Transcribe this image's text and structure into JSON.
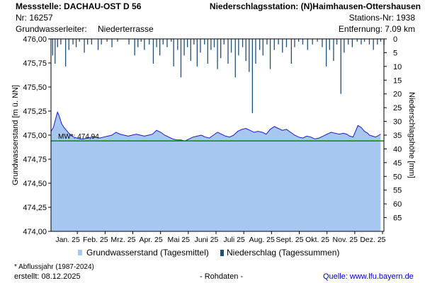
{
  "header": {
    "station_left": "Messstelle: DACHAU-OST D 56",
    "nr_left": "Nr: 16257",
    "aquifer_label": "Grundwasserleiter:",
    "aquifer_value": "Niederterrasse",
    "station_right": "Niederschlagsstation: (N)Haimhausen-Ottershausen",
    "nr_right": "Stations-Nr: 1938",
    "distance": "Entfernung: 7.09 km"
  },
  "chart_data": {
    "type": "area",
    "y_left": {
      "label": "Grundwasserstand [m ü. NN]",
      "range": [
        474.0,
        476.0
      ],
      "ticks": [
        "474,00",
        "474,25",
        "474,50",
        "474,75",
        "475,00",
        "475,25",
        "475,50",
        "475,75",
        "476,00"
      ]
    },
    "y_right": {
      "label": "Niederschlagshöhe [mm]",
      "range": [
        0,
        70
      ],
      "ticks": [
        "0",
        "5",
        "10",
        "15",
        "20",
        "25",
        "30",
        "35",
        "40",
        "45",
        "50",
        "55",
        "60",
        "65"
      ]
    },
    "x_months": [
      "Jan. 25",
      "Feb. 25",
      "Mrz. 25",
      "Apr. 25",
      "Mai 25",
      "Juni 25",
      "Juli 25",
      "Aug. 25",
      "Sept. 25",
      "Okt. 25",
      "Nov. 25",
      "Dez. 25"
    ],
    "mean_water_level": {
      "label": "MW*: 474,94",
      "value": 474.94,
      "color": "#009900"
    },
    "series": [
      {
        "name": "Grundwasserstand (Tagesmittel)",
        "color_fill": "#a6c8f0",
        "color_line": "#1a1acc",
        "points": [
          [
            0,
            475.04
          ],
          [
            3,
            475.08
          ],
          [
            6,
            475.18
          ],
          [
            8,
            475.24
          ],
          [
            10,
            475.2
          ],
          [
            13,
            475.12
          ],
          [
            16,
            475.08
          ],
          [
            20,
            475.04
          ],
          [
            24,
            475.0
          ],
          [
            28,
            474.98
          ],
          [
            32,
            474.97
          ],
          [
            36,
            474.96
          ],
          [
            40,
            474.96
          ],
          [
            45,
            474.97
          ],
          [
            50,
            474.98
          ],
          [
            55,
            474.98
          ],
          [
            60,
            474.97
          ],
          [
            65,
            474.98
          ],
          [
            70,
            474.99
          ],
          [
            75,
            475.0
          ],
          [
            80,
            475.03
          ],
          [
            85,
            475.01
          ],
          [
            90,
            475.0
          ],
          [
            95,
            474.99
          ],
          [
            100,
            475.0
          ],
          [
            105,
            475.01
          ],
          [
            110,
            475.0
          ],
          [
            115,
            474.99
          ],
          [
            120,
            475.0
          ],
          [
            125,
            475.01
          ],
          [
            130,
            475.05
          ],
          [
            135,
            475.03
          ],
          [
            140,
            475.0
          ],
          [
            145,
            474.98
          ],
          [
            150,
            474.96
          ],
          [
            155,
            474.95
          ],
          [
            160,
            474.95
          ],
          [
            165,
            474.94
          ],
          [
            170,
            474.96
          ],
          [
            175,
            474.98
          ],
          [
            180,
            474.99
          ],
          [
            185,
            475.0
          ],
          [
            190,
            474.98
          ],
          [
            195,
            474.97
          ],
          [
            200,
            475.0
          ],
          [
            205,
            475.03
          ],
          [
            210,
            475.01
          ],
          [
            215,
            474.99
          ],
          [
            220,
            474.98
          ],
          [
            225,
            475.0
          ],
          [
            230,
            475.04
          ],
          [
            235,
            475.06
          ],
          [
            240,
            475.07
          ],
          [
            245,
            475.05
          ],
          [
            250,
            475.03
          ],
          [
            255,
            475.04
          ],
          [
            260,
            475.03
          ],
          [
            265,
            475.01
          ],
          [
            270,
            475.06
          ],
          [
            275,
            475.09
          ],
          [
            280,
            475.07
          ],
          [
            285,
            475.05
          ],
          [
            290,
            475.06
          ],
          [
            295,
            475.03
          ],
          [
            300,
            475.0
          ],
          [
            305,
            474.98
          ],
          [
            310,
            474.97
          ],
          [
            315,
            474.99
          ],
          [
            320,
            474.98
          ],
          [
            325,
            474.96
          ],
          [
            330,
            474.97
          ],
          [
            335,
            474.99
          ],
          [
            340,
            475.01
          ],
          [
            345,
            475.03
          ],
          [
            350,
            475.02
          ],
          [
            355,
            475.01
          ],
          [
            360,
            475.02
          ],
          [
            364,
            475.01
          ],
          [
            368,
            474.99
          ],
          [
            372,
            474.98
          ],
          [
            375,
            475.04
          ],
          [
            378,
            475.1
          ],
          [
            382,
            475.08
          ],
          [
            386,
            475.04
          ],
          [
            390,
            475.02
          ],
          [
            392,
            475.0
          ],
          [
            396,
            474.99
          ],
          [
            400,
            474.98
          ],
          [
            404,
            475.0
          ],
          [
            406,
            475.01
          ]
        ]
      },
      {
        "name": "Niederschlag (Tagessummen)",
        "color": "#1f4e79",
        "bars": [
          [
            2,
            6
          ],
          [
            5,
            9
          ],
          [
            8,
            3
          ],
          [
            12,
            2
          ],
          [
            18,
            10
          ],
          [
            22,
            4
          ],
          [
            27,
            2
          ],
          [
            31,
            3
          ],
          [
            35,
            1
          ],
          [
            41,
            5
          ],
          [
            45,
            2
          ],
          [
            50,
            2
          ],
          [
            58,
            4
          ],
          [
            62,
            2
          ],
          [
            69,
            1
          ],
          [
            75,
            3
          ],
          [
            82,
            1
          ],
          [
            96,
            2
          ],
          [
            103,
            6
          ],
          [
            107,
            3
          ],
          [
            111,
            1
          ],
          [
            115,
            4
          ],
          [
            121,
            2
          ],
          [
            126,
            9
          ],
          [
            130,
            3
          ],
          [
            134,
            6
          ],
          [
            138,
            2
          ],
          [
            143,
            3
          ],
          [
            148,
            1
          ],
          [
            151,
            10
          ],
          [
            156,
            4
          ],
          [
            160,
            14
          ],
          [
            164,
            6
          ],
          [
            168,
            3
          ],
          [
            172,
            8
          ],
          [
            176,
            2
          ],
          [
            180,
            10
          ],
          [
            184,
            5
          ],
          [
            189,
            2
          ],
          [
            193,
            9
          ],
          [
            197,
            4
          ],
          [
            201,
            3
          ],
          [
            205,
            11
          ],
          [
            209,
            7
          ],
          [
            213,
            2
          ],
          [
            218,
            9
          ],
          [
            222,
            5
          ],
          [
            227,
            14
          ],
          [
            231,
            6
          ],
          [
            236,
            3
          ],
          [
            240,
            8
          ],
          [
            244,
            12
          ],
          [
            248,
            27
          ],
          [
            252,
            9
          ],
          [
            257,
            4
          ],
          [
            261,
            6
          ],
          [
            266,
            2
          ],
          [
            270,
            11
          ],
          [
            275,
            4
          ],
          [
            280,
            2
          ],
          [
            285,
            5
          ],
          [
            290,
            3
          ],
          [
            296,
            9
          ],
          [
            300,
            3
          ],
          [
            305,
            1
          ],
          [
            310,
            2
          ],
          [
            316,
            4
          ],
          [
            322,
            2
          ],
          [
            328,
            1
          ],
          [
            334,
            3
          ],
          [
            339,
            10
          ],
          [
            343,
            4
          ],
          [
            348,
            8
          ],
          [
            352,
            2
          ],
          [
            357,
            20
          ],
          [
            361,
            5
          ],
          [
            366,
            2
          ],
          [
            371,
            3
          ],
          [
            377,
            1
          ],
          [
            382,
            2
          ],
          [
            386,
            1
          ],
          [
            392,
            2
          ],
          [
            397,
            4
          ],
          [
            402,
            2
          ],
          [
            406,
            1
          ],
          [
            410,
            2
          ]
        ]
      }
    ],
    "legend": [
      {
        "label": "Grundwasserstand (Tagesmittel)",
        "color": "#a6c8f0"
      },
      {
        "label": "Niederschlag (Tagessummen)",
        "color": "#1f4e79"
      }
    ]
  },
  "footer": {
    "note": "* Abflussjahr (1987-2024)",
    "created": "erstellt:  08.12.2025",
    "rohdaten": "- Rohdaten -",
    "source_label": "Quelle: ",
    "source_link": "www.lfu.bayern.de"
  }
}
